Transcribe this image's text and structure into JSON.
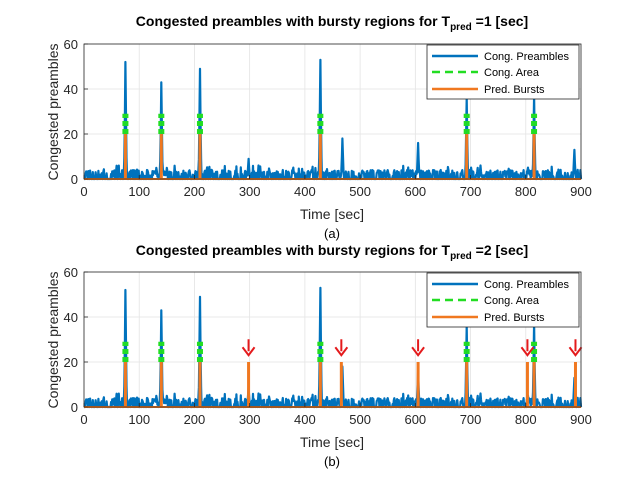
{
  "chart_data": [
    {
      "type": "line",
      "title": "Congested preambles with bursty regions for T",
      "title_sub": "pred",
      "title_suffix": " =1  [sec]",
      "xlabel": "Time [sec]",
      "ylabel": "Congested preambles",
      "caption": "(a)",
      "xlim": [
        0,
        900
      ],
      "ylim": [
        0,
        60
      ],
      "xticks": [
        0,
        100,
        200,
        300,
        400,
        500,
        600,
        700,
        800,
        900
      ],
      "yticks": [
        0,
        20,
        40,
        60
      ],
      "grid": true,
      "legend_position": "top-right",
      "legend": [
        "Cong. Preambles",
        "Cong. Area",
        "Pred. Bursts"
      ],
      "series_colors": [
        "#0072BD",
        "#22DD22",
        "#F07820"
      ],
      "preamble_peaks": [
        [
          75,
          52
        ],
        [
          140,
          43
        ],
        [
          210,
          49
        ],
        [
          298,
          9
        ],
        [
          428,
          53
        ],
        [
          468,
          18
        ],
        [
          605,
          16
        ],
        [
          693,
          36
        ],
        [
          718,
          6
        ],
        [
          815,
          37
        ],
        [
          888,
          13
        ]
      ],
      "congestion_areas": [
        75,
        140,
        210,
        428,
        693,
        815
      ],
      "area_levels": [
        20,
        29
      ],
      "predicted_bursts": [
        75,
        140,
        210,
        428,
        693,
        815
      ],
      "burst_height": 20,
      "red_arrows": []
    },
    {
      "type": "line",
      "title": "Congested preambles with bursty regions for T",
      "title_sub": "pred",
      "title_suffix": " =2  [sec]",
      "xlabel": "Time [sec]",
      "ylabel": "Congested preambles",
      "caption": "(b)",
      "xlim": [
        0,
        900
      ],
      "ylim": [
        0,
        60
      ],
      "xticks": [
        0,
        100,
        200,
        300,
        400,
        500,
        600,
        700,
        800,
        900
      ],
      "yticks": [
        0,
        20,
        40,
        60
      ],
      "grid": true,
      "legend_position": "top-right",
      "legend": [
        "Cong. Preambles",
        "Cong. Area",
        "Pred. Bursts"
      ],
      "series_colors": [
        "#0072BD",
        "#22DD22",
        "#F07820"
      ],
      "preamble_peaks": [
        [
          75,
          52
        ],
        [
          140,
          43
        ],
        [
          210,
          49
        ],
        [
          298,
          9
        ],
        [
          428,
          53
        ],
        [
          468,
          18
        ],
        [
          605,
          16
        ],
        [
          693,
          36
        ],
        [
          718,
          6
        ],
        [
          815,
          37
        ],
        [
          888,
          13
        ]
      ],
      "congestion_areas": [
        75,
        140,
        210,
        428,
        693,
        815
      ],
      "area_levels": [
        20,
        29
      ],
      "predicted_bursts": [
        75,
        140,
        210,
        298,
        428,
        466,
        605,
        693,
        803,
        815,
        890
      ],
      "burst_height": 20,
      "red_arrows": [
        298,
        466,
        605,
        803,
        890
      ]
    }
  ]
}
